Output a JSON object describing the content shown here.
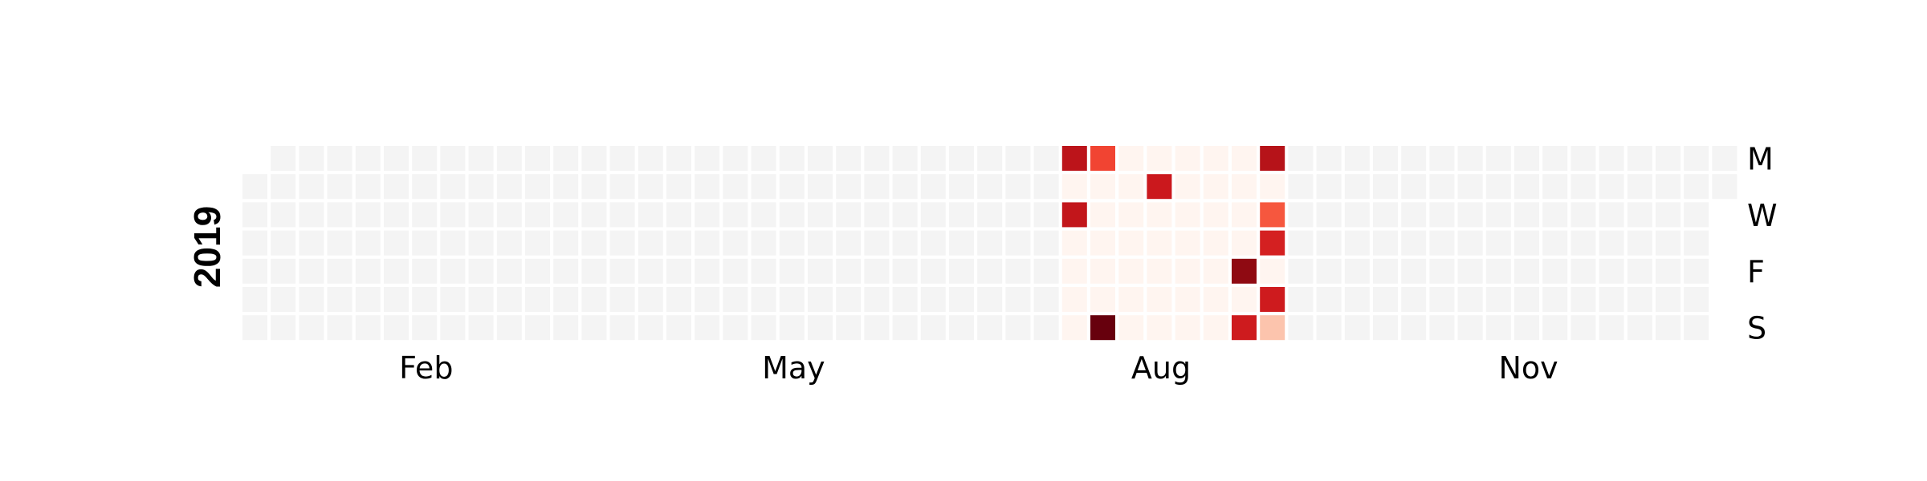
{
  "chart_data": {
    "type": "heatmap",
    "title": "",
    "year": "2019",
    "colormap": "Reds",
    "empty_color": "#f4f4f4",
    "zero_color": "#fff5f0",
    "week_count": 53,
    "first_day_row": 1,
    "day_count": 365,
    "month_labels": [
      {
        "label": "Feb",
        "week": 6.5
      },
      {
        "label": "May",
        "week": 19.5
      },
      {
        "label": "Aug",
        "week": 32.5
      },
      {
        "label": "Nov",
        "week": 45.5
      }
    ],
    "day_labels": [
      {
        "label": "M",
        "row": 0
      },
      {
        "label": "W",
        "row": 2
      },
      {
        "label": "F",
        "row": 4
      },
      {
        "label": "S",
        "row": 6
      }
    ],
    "active_range": {
      "start_week": 29,
      "end_week": 36
    },
    "values": [
      {
        "week": 29,
        "row": 0,
        "value": 0.8
      },
      {
        "week": 30,
        "row": 0,
        "value": 0.6
      },
      {
        "week": 36,
        "row": 0,
        "value": 0.82
      },
      {
        "week": 32,
        "row": 1,
        "value": 0.75
      },
      {
        "week": 29,
        "row": 2,
        "value": 0.78
      },
      {
        "week": 36,
        "row": 2,
        "value": 0.55
      },
      {
        "week": 36,
        "row": 3,
        "value": 0.72
      },
      {
        "week": 35,
        "row": 4,
        "value": 0.92
      },
      {
        "week": 36,
        "row": 5,
        "value": 0.74
      },
      {
        "week": 30,
        "row": 6,
        "value": 1.0
      },
      {
        "week": 35,
        "row": 6,
        "value": 0.74
      },
      {
        "week": 36,
        "row": 6,
        "value": 0.22
      }
    ]
  }
}
